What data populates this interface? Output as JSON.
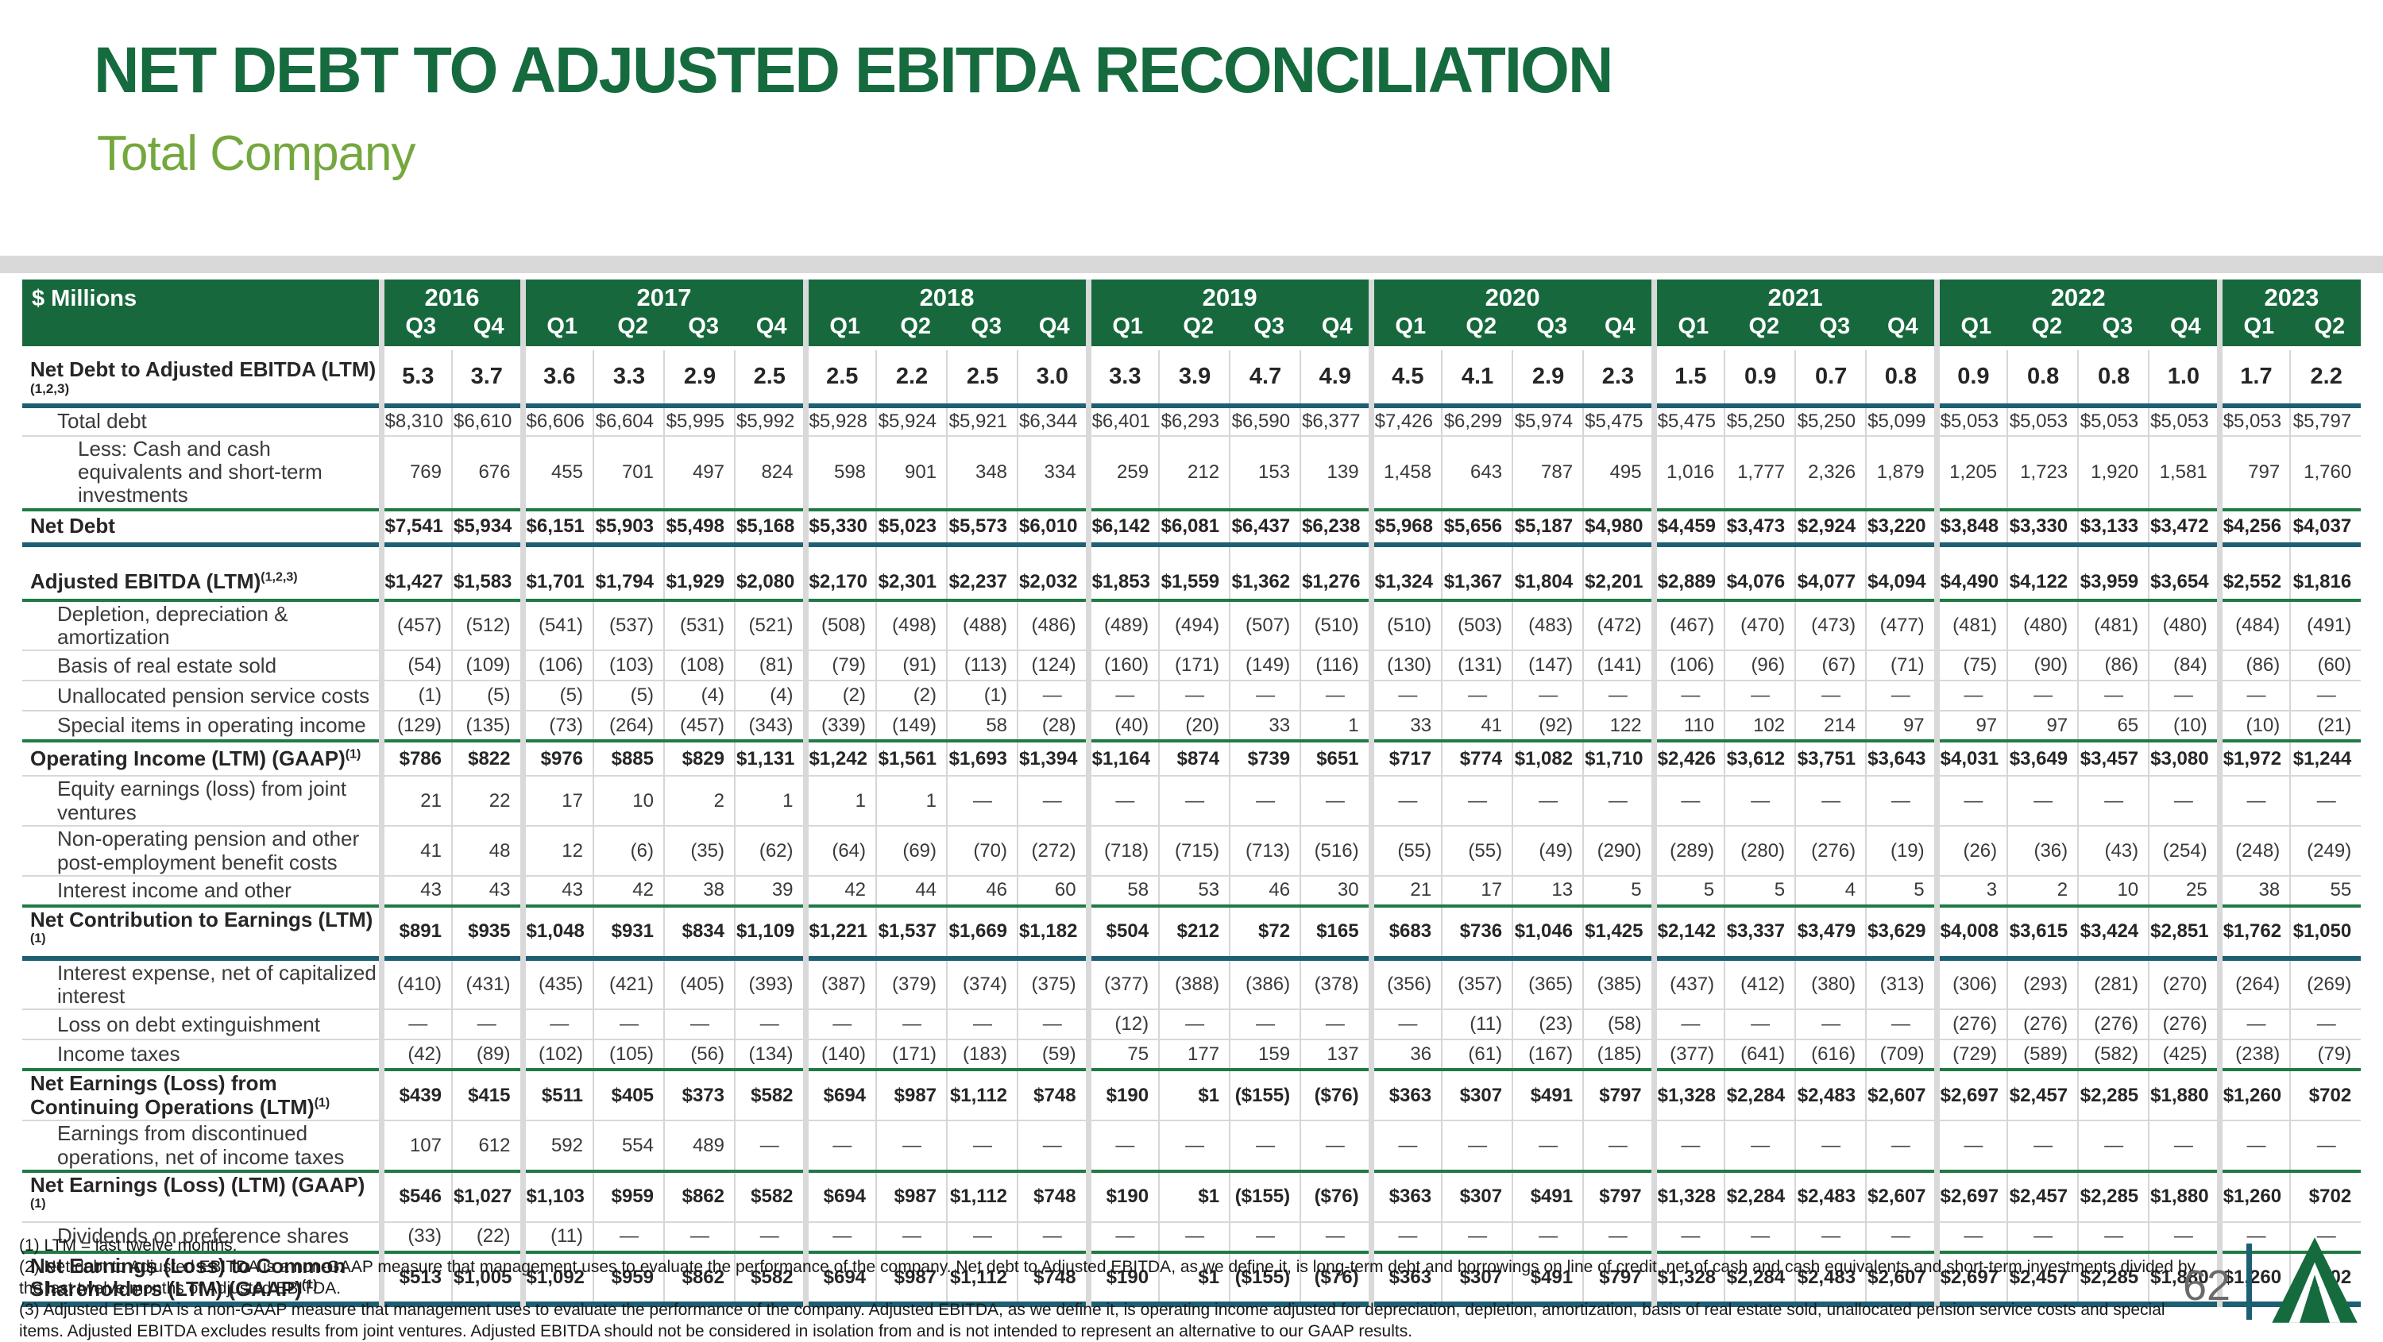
{
  "title": "NET DEBT TO ADJUSTED EBITDA RECONCILIATION",
  "subtitle": "Total Company",
  "page_number": "62",
  "colors": {
    "title_green": "#156b3e",
    "subtitle_green": "#74a83e",
    "header_green": "#17693d",
    "teal_rule": "#1d5f73",
    "green_rule": "#1f7a44",
    "band_gray": "#d9d9d9"
  },
  "table": {
    "unit_label": "$ Millions",
    "year_groups": [
      {
        "year": "2016",
        "quarters": [
          "Q3",
          "Q4"
        ]
      },
      {
        "year": "2017",
        "quarters": [
          "Q1",
          "Q2",
          "Q3",
          "Q4"
        ]
      },
      {
        "year": "2018",
        "quarters": [
          "Q1",
          "Q2",
          "Q3",
          "Q4"
        ]
      },
      {
        "year": "2019",
        "quarters": [
          "Q1",
          "Q2",
          "Q3",
          "Q4"
        ]
      },
      {
        "year": "2020",
        "quarters": [
          "Q1",
          "Q2",
          "Q3",
          "Q4"
        ]
      },
      {
        "year": "2021",
        "quarters": [
          "Q1",
          "Q2",
          "Q3",
          "Q4"
        ]
      },
      {
        "year": "2022",
        "quarters": [
          "Q1",
          "Q2",
          "Q3",
          "Q4"
        ]
      },
      {
        "year": "2023",
        "quarters": [
          "Q1",
          "Q2"
        ]
      }
    ],
    "rows": [
      {
        "label": "Net Debt to Adjusted EBITDA (LTM)",
        "sup_below": "(1,2,3)",
        "cls": "ratio bold bb-teal",
        "indent": 0,
        "values": [
          "5.3",
          "3.7",
          "3.6",
          "3.3",
          "2.9",
          "2.5",
          "2.5",
          "2.2",
          "2.5",
          "3.0",
          "3.3",
          "3.9",
          "4.7",
          "4.9",
          "4.5",
          "4.1",
          "2.9",
          "2.3",
          "1.5",
          "0.9",
          "0.7",
          "0.8",
          "0.9",
          "0.8",
          "0.8",
          "1.0",
          "1.7",
          "2.2"
        ]
      },
      {
        "label": "Total debt",
        "cls": "h1",
        "indent": 1,
        "values": [
          "$8,310",
          "$6,610",
          "$6,606",
          "$6,604",
          "$5,995",
          "$5,992",
          "$5,928",
          "$5,924",
          "$5,921",
          "$6,344",
          "$6,401",
          "$6,293",
          "$6,590",
          "$6,377",
          "$7,426",
          "$6,299",
          "$5,974",
          "$5,475",
          "$5,475",
          "$5,250",
          "$5,250",
          "$5,099",
          "$5,053",
          "$5,053",
          "$5,053",
          "$5,053",
          "$5,053",
          "$5,797"
        ]
      },
      {
        "label": "Less: Cash and cash equivalents and short-term investments",
        "cls": "h2",
        "indent": 2,
        "values": [
          "769",
          "676",
          "455",
          "701",
          "497",
          "824",
          "598",
          "901",
          "348",
          "334",
          "259",
          "212",
          "153",
          "139",
          "1,458",
          "643",
          "787",
          "495",
          "1,016",
          "1,777",
          "2,326",
          "1,879",
          "1,205",
          "1,723",
          "1,920",
          "1,581",
          "797",
          "1,760"
        ]
      },
      {
        "label": "Net Debt",
        "cls": "ht bold bt-green bb-teal",
        "indent": 0,
        "values": [
          "$7,541",
          "$5,934",
          "$6,151",
          "$5,903",
          "$5,498",
          "$5,168",
          "$5,330",
          "$5,023",
          "$5,573",
          "$6,010",
          "$6,142",
          "$6,081",
          "$6,437",
          "$6,238",
          "$5,968",
          "$5,656",
          "$5,187",
          "$4,980",
          "$4,459",
          "$3,473",
          "$2,924",
          "$3,220",
          "$3,848",
          "$3,330",
          "$3,133",
          "$3,472",
          "$4,256",
          "$4,037"
        ]
      },
      {
        "label": "",
        "cls": "spacer",
        "indent": 0,
        "values": [
          "",
          "",
          "",
          "",
          "",
          "",
          "",
          "",
          "",
          "",
          "",
          "",
          "",
          "",
          "",
          "",
          "",
          "",
          "",
          "",
          "",
          "",
          "",
          "",
          "",
          "",
          "",
          ""
        ]
      },
      {
        "label": "Adjusted EBITDA (LTM)",
        "sup": "(1,2,3)",
        "cls": "ht bold bb-green",
        "indent": 0,
        "values": [
          "$1,427",
          "$1,583",
          "$1,701",
          "$1,794",
          "$1,929",
          "$2,080",
          "$2,170",
          "$2,301",
          "$2,237",
          "$2,032",
          "$1,853",
          "$1,559",
          "$1,362",
          "$1,276",
          "$1,324",
          "$1,367",
          "$1,804",
          "$2,201",
          "$2,889",
          "$4,076",
          "$4,077",
          "$4,094",
          "$4,490",
          "$4,122",
          "$3,959",
          "$3,654",
          "$2,552",
          "$1,816"
        ]
      },
      {
        "label": "Depletion, depreciation & amortization",
        "cls": "h2",
        "indent": 1,
        "values": [
          "(457)",
          "(512)",
          "(541)",
          "(537)",
          "(531)",
          "(521)",
          "(508)",
          "(498)",
          "(488)",
          "(486)",
          "(489)",
          "(494)",
          "(507)",
          "(510)",
          "(510)",
          "(503)",
          "(483)",
          "(472)",
          "(467)",
          "(470)",
          "(473)",
          "(477)",
          "(481)",
          "(480)",
          "(481)",
          "(480)",
          "(484)",
          "(491)"
        ]
      },
      {
        "label": "Basis of real estate sold",
        "cls": "h1",
        "indent": 1,
        "values": [
          "(54)",
          "(109)",
          "(106)",
          "(103)",
          "(108)",
          "(81)",
          "(79)",
          "(91)",
          "(113)",
          "(124)",
          "(160)",
          "(171)",
          "(149)",
          "(116)",
          "(130)",
          "(131)",
          "(147)",
          "(141)",
          "(106)",
          "(96)",
          "(67)",
          "(71)",
          "(75)",
          "(90)",
          "(86)",
          "(84)",
          "(86)",
          "(60)"
        ]
      },
      {
        "label": "Unallocated pension service costs",
        "cls": "h1",
        "indent": 1,
        "values": [
          "(1)",
          "(5)",
          "(5)",
          "(5)",
          "(4)",
          "(4)",
          "(2)",
          "(2)",
          "(1)",
          "—",
          "—",
          "—",
          "—",
          "—",
          "—",
          "—",
          "—",
          "—",
          "—",
          "—",
          "—",
          "—",
          "—",
          "—",
          "—",
          "—",
          "—",
          "—"
        ]
      },
      {
        "label": "Special items in operating income",
        "cls": "h1 bb-green",
        "indent": 1,
        "values": [
          "(129)",
          "(135)",
          "(73)",
          "(264)",
          "(457)",
          "(343)",
          "(339)",
          "(149)",
          "58",
          "(28)",
          "(40)",
          "(20)",
          "33",
          "1",
          "33",
          "41",
          "(92)",
          "122",
          "110",
          "102",
          "214",
          "97",
          "97",
          "97",
          "65",
          "(10)",
          "(10)",
          "(21)"
        ]
      },
      {
        "label": "Operating Income (LTM) (GAAP)",
        "sup": "(1)",
        "cls": "ht bold",
        "indent": 0,
        "values": [
          "$786",
          "$822",
          "$976",
          "$885",
          "$829",
          "$1,131",
          "$1,242",
          "$1,561",
          "$1,693",
          "$1,394",
          "$1,164",
          "$874",
          "$739",
          "$651",
          "$717",
          "$774",
          "$1,082",
          "$1,710",
          "$2,426",
          "$3,612",
          "$3,751",
          "$3,643",
          "$4,031",
          "$3,649",
          "$3,457",
          "$3,080",
          "$1,972",
          "$1,244"
        ]
      },
      {
        "label": "Equity earnings (loss) from joint ventures",
        "cls": "h2",
        "indent": 1,
        "values": [
          "21",
          "22",
          "17",
          "10",
          "2",
          "1",
          "1",
          "1",
          "—",
          "—",
          "—",
          "—",
          "—",
          "—",
          "—",
          "—",
          "—",
          "—",
          "—",
          "—",
          "—",
          "—",
          "—",
          "—",
          "—",
          "—",
          "—",
          "—"
        ]
      },
      {
        "label": "Non-operating pension and other post-employment benefit costs",
        "cls": "h2",
        "indent": 1,
        "values": [
          "41",
          "48",
          "12",
          "(6)",
          "(35)",
          "(62)",
          "(64)",
          "(69)",
          "(70)",
          "(272)",
          "(718)",
          "(715)",
          "(713)",
          "(516)",
          "(55)",
          "(55)",
          "(49)",
          "(290)",
          "(289)",
          "(280)",
          "(276)",
          "(19)",
          "(26)",
          "(36)",
          "(43)",
          "(254)",
          "(248)",
          "(249)"
        ]
      },
      {
        "label": "Interest income and other",
        "cls": "h1 bb-green",
        "indent": 1,
        "values": [
          "43",
          "43",
          "43",
          "42",
          "38",
          "39",
          "42",
          "44",
          "46",
          "60",
          "58",
          "53",
          "46",
          "30",
          "21",
          "17",
          "13",
          "5",
          "5",
          "5",
          "4",
          "5",
          "3",
          "2",
          "10",
          "25",
          "38",
          "55"
        ]
      },
      {
        "label": "Net Contribution to Earnings (LTM)",
        "sup": "(1)",
        "cls": "ht bold bb-teal",
        "indent": 0,
        "values": [
          "$891",
          "$935",
          "$1,048",
          "$931",
          "$834",
          "$1,109",
          "$1,221",
          "$1,537",
          "$1,669",
          "$1,182",
          "$504",
          "$212",
          "$72",
          "$165",
          "$683",
          "$736",
          "$1,046",
          "$1,425",
          "$2,142",
          "$3,337",
          "$3,479",
          "$3,629",
          "$4,008",
          "$3,615",
          "$3,424",
          "$2,851",
          "$1,762",
          "$1,050"
        ]
      },
      {
        "label": "Interest expense, net of capitalized interest",
        "cls": "h2",
        "indent": 1,
        "values": [
          "(410)",
          "(431)",
          "(435)",
          "(421)",
          "(405)",
          "(393)",
          "(387)",
          "(379)",
          "(374)",
          "(375)",
          "(377)",
          "(388)",
          "(386)",
          "(378)",
          "(356)",
          "(357)",
          "(365)",
          "(385)",
          "(437)",
          "(412)",
          "(380)",
          "(313)",
          "(306)",
          "(293)",
          "(281)",
          "(270)",
          "(264)",
          "(269)"
        ]
      },
      {
        "label": "Loss on debt extinguishment",
        "cls": "h1",
        "indent": 1,
        "values": [
          "—",
          "—",
          "—",
          "—",
          "—",
          "—",
          "—",
          "—",
          "—",
          "—",
          "(12)",
          "—",
          "—",
          "—",
          "—",
          "(11)",
          "(23)",
          "(58)",
          "—",
          "—",
          "—",
          "—",
          "(276)",
          "(276)",
          "(276)",
          "(276)",
          "—",
          "—"
        ]
      },
      {
        "label": "Income taxes",
        "cls": "h1 bb-green",
        "indent": 1,
        "values": [
          "(42)",
          "(89)",
          "(102)",
          "(105)",
          "(56)",
          "(134)",
          "(140)",
          "(171)",
          "(183)",
          "(59)",
          "75",
          "177",
          "159",
          "137",
          "36",
          "(61)",
          "(167)",
          "(185)",
          "(377)",
          "(641)",
          "(616)",
          "(709)",
          "(729)",
          "(589)",
          "(582)",
          "(425)",
          "(238)",
          "(79)"
        ]
      },
      {
        "label": "Net Earnings (Loss) from Continuing Operations (LTM)",
        "sup": "(1)",
        "cls": "h2 bold",
        "indent": 0,
        "values": [
          "$439",
          "$415",
          "$511",
          "$405",
          "$373",
          "$582",
          "$694",
          "$987",
          "$1,112",
          "$748",
          "$190",
          "$1",
          "($155)",
          "($76)",
          "$363",
          "$307",
          "$491",
          "$797",
          "$1,328",
          "$2,284",
          "$2,483",
          "$2,607",
          "$2,697",
          "$2,457",
          "$2,285",
          "$1,880",
          "$1,260",
          "$702"
        ]
      },
      {
        "label": "Earnings from discontinued operations, net of income taxes",
        "cls": "h2 bb-green",
        "indent": 1,
        "values": [
          "107",
          "612",
          "592",
          "554",
          "489",
          "—",
          "—",
          "—",
          "—",
          "—",
          "—",
          "—",
          "—",
          "—",
          "—",
          "—",
          "—",
          "—",
          "—",
          "—",
          "—",
          "—",
          "—",
          "—",
          "—",
          "—",
          "—",
          "—"
        ]
      },
      {
        "label": "Net Earnings (Loss) (LTM) (GAAP)",
        "sup": "(1)",
        "cls": "ht bold",
        "indent": 0,
        "values": [
          "$546",
          "$1,027",
          "$1,103",
          "$959",
          "$862",
          "$582",
          "$694",
          "$987",
          "$1,112",
          "$748",
          "$190",
          "$1",
          "($155)",
          "($76)",
          "$363",
          "$307",
          "$491",
          "$797",
          "$1,328",
          "$2,284",
          "$2,483",
          "$2,607",
          "$2,697",
          "$2,457",
          "$2,285",
          "$1,880",
          "$1,260",
          "$702"
        ]
      },
      {
        "label": "Dividends on preference shares",
        "cls": "h1 bb-green",
        "indent": 1,
        "values": [
          "(33)",
          "(22)",
          "(11)",
          "—",
          "—",
          "—",
          "—",
          "—",
          "—",
          "—",
          "—",
          "—",
          "—",
          "—",
          "—",
          "—",
          "—",
          "—",
          "—",
          "—",
          "—",
          "—",
          "—",
          "—",
          "—",
          "—",
          "—",
          "—"
        ]
      },
      {
        "label": "Net Earnings (Loss) to Common Shareholders (LTM) (GAAP)",
        "sup": "(1)",
        "cls": "h2 bold bb-end",
        "indent": 0,
        "values": [
          "$513",
          "$1,005",
          "$1,092",
          "$959",
          "$862",
          "$582",
          "$694",
          "$987",
          "$1,112",
          "$748",
          "$190",
          "$1",
          "($155)",
          "($76)",
          "$363",
          "$307",
          "$491",
          "$797",
          "$1,328",
          "$2,284",
          "$2,483",
          "$2,607",
          "$2,697",
          "$2,457",
          "$2,285",
          "$1,880",
          "$1,260",
          "$702"
        ]
      }
    ]
  },
  "footnotes": [
    "(1) LTM = last twelve months.",
    "(2) Net debt to Adjusted EBITDA is a non-GAAP measure that management uses to evaluate the performance of the company. Net debt to Adjusted EBITDA, as we define it, is long-term debt and borrowings on line of credit, net of cash and cash equivalents and short-term investments divided by the last twelve months of Adjusted EBITDA.",
    "(3) Adjusted EBITDA is a non-GAAP measure that management uses to evaluate the performance of the company. Adjusted EBITDA, as we define it, is operating income adjusted for depreciation, depletion, amortization, basis of real estate sold, unallocated pension service costs and special items. Adjusted EBITDA excludes results from joint ventures. Adjusted EBITDA should not be considered in isolation from and is not intended to represent an alternative to our GAAP results."
  ]
}
